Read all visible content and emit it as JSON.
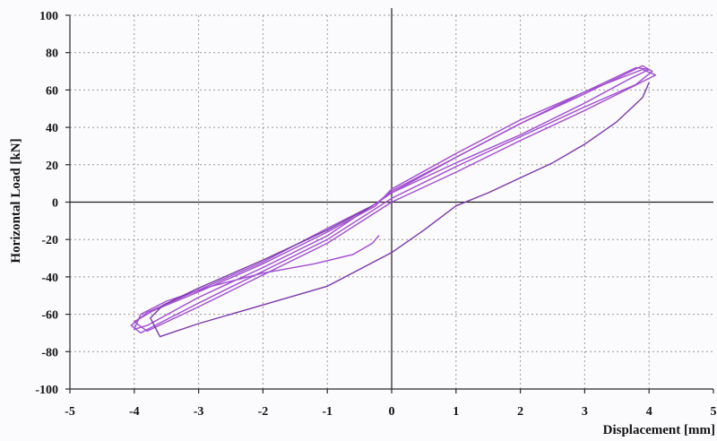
{
  "chart_data": {
    "type": "line",
    "title": "",
    "xlabel": "Displacement [mm]",
    "ylabel": "Horizontal Load [kN]",
    "xlim": [
      -5,
      5
    ],
    "ylim": [
      -100,
      100
    ],
    "x_ticks": [
      "-5",
      "-4",
      "-3",
      "-2",
      "-1",
      "0",
      "1",
      "2",
      "3",
      "4",
      "5"
    ],
    "y_ticks": [
      "100",
      "80",
      "60",
      "40",
      "20",
      "0",
      "-20",
      "-40",
      "-60",
      "-80",
      "-100"
    ],
    "grid": true,
    "legend": "none",
    "colors": {
      "primary": "#a04ed0",
      "secondary": "#7a3aa8"
    },
    "series": [
      {
        "x": [
          -0.2,
          -0.25,
          -0.3,
          -0.6,
          -1.2,
          -2.0,
          -2.8,
          -3.5,
          -3.9,
          -4.0,
          -3.8,
          -3.0,
          -2.0,
          -1.0,
          0.0,
          1.0,
          2.0,
          3.0,
          3.7,
          4.0,
          3.8,
          3.0,
          2.0,
          1.0,
          0.0,
          -0.25
        ],
        "y": [
          -18,
          -20,
          -22,
          -28,
          -33,
          -38,
          -45,
          -53,
          -60,
          -68,
          -66,
          -51,
          -35,
          -18,
          5,
          21,
          36,
          53,
          66,
          71,
          72,
          59,
          42,
          24,
          6,
          -1
        ]
      },
      {
        "x": [
          -0.25,
          -1.0,
          -2.0,
          -3.0,
          -3.8,
          -4.05,
          -3.9,
          -3.0,
          -2.0,
          -1.0,
          0.0,
          1.0,
          2.0,
          3.0,
          3.8,
          4.05,
          3.9,
          3.0,
          2.0,
          1.0,
          0.0,
          -0.25
        ],
        "y": [
          -1,
          -14,
          -32,
          -47,
          -59,
          -66,
          -70,
          -54,
          -37,
          -20,
          2,
          19,
          35,
          51,
          63,
          70,
          73,
          58,
          42,
          24,
          5,
          -1
        ]
      },
      {
        "x": [
          -0.25,
          -1.0,
          -2.0,
          -3.0,
          -3.7,
          -4.0,
          -3.8,
          -3.0,
          -2.0,
          -1.0,
          0.0,
          1.0,
          2.0,
          3.0,
          3.7,
          4.1,
          3.9,
          3.0,
          2.0,
          1.0,
          0.0,
          -0.25
        ],
        "y": [
          -2,
          -16,
          -33,
          -48,
          -58,
          -64,
          -69,
          -56,
          -39,
          -22,
          0,
          16,
          33,
          49,
          61,
          68,
          71,
          59,
          44,
          26,
          7,
          -2
        ]
      },
      {
        "x": [
          -0.3,
          -1.0,
          -2.0,
          -3.0,
          -3.55,
          -3.75,
          -3.6,
          -3.0,
          -2.0,
          -1.0,
          0.0,
          0.5,
          1.0,
          1.5,
          2.0,
          2.5,
          3.0,
          3.5,
          3.9,
          4.0
        ],
        "y": [
          -2,
          -15,
          -31,
          -46,
          -55,
          -62,
          -72,
          -65,
          -55,
          -45,
          -27,
          -15,
          -2,
          5,
          13,
          21,
          31,
          43,
          56,
          64
        ]
      }
    ]
  }
}
